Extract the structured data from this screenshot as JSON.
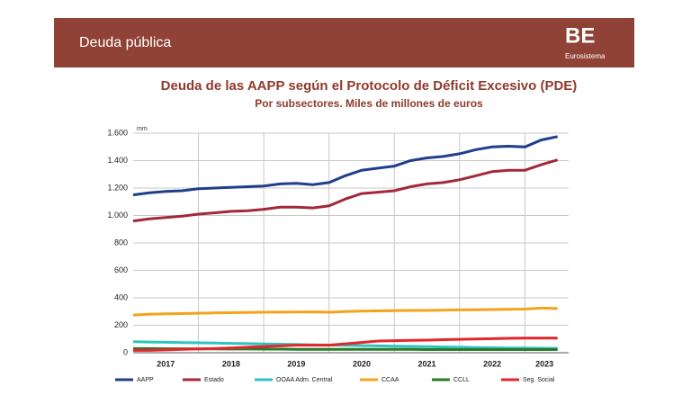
{
  "header": {
    "title": "Deuda pública",
    "logo": "BE",
    "logo_sub": "Eurosistema"
  },
  "chart_data": {
    "type": "line",
    "title": "Deuda de las AAPP según el Protocolo de Déficit Excesivo (PDE)",
    "subtitle": "Por subsectores. Miles de millones de euros",
    "y_label": "mm",
    "x": [
      2017,
      2017.25,
      2017.5,
      2017.75,
      2018,
      2018.25,
      2018.5,
      2018.75,
      2019,
      2019.25,
      2019.5,
      2019.75,
      2020,
      2020.25,
      2020.5,
      2020.75,
      2021,
      2021.25,
      2021.5,
      2021.75,
      2022,
      2022.25,
      2022.5,
      2022.75,
      2023,
      2023.25,
      2023.5
    ],
    "xlim": [
      2017,
      2023.67
    ],
    "xticks": [
      {
        "value": 2017.5,
        "label": "2017"
      },
      {
        "value": 2018.5,
        "label": "2018"
      },
      {
        "value": 2019.5,
        "label": "2019"
      },
      {
        "value": 2020.5,
        "label": "2020"
      },
      {
        "value": 2021.5,
        "label": "2021"
      },
      {
        "value": 2022.5,
        "label": "2022"
      },
      {
        "value": 2023.3,
        "label": "2023"
      }
    ],
    "xgrid": [
      2018,
      2019,
      2020,
      2021,
      2022,
      2023
    ],
    "ylim": [
      0,
      1600
    ],
    "yticks": [
      0,
      200,
      400,
      600,
      800,
      {
        "value": 1000,
        "label": "1.000"
      },
      {
        "value": 1200,
        "label": "1.200"
      },
      {
        "value": 1400,
        "label": "1.400"
      },
      {
        "value": 1600,
        "label": "1.600"
      }
    ],
    "grid": true,
    "legend": "bottom",
    "series": [
      {
        "name": "AAPP",
        "color": "#1f3f8c",
        "values": [
          1150,
          1165,
          1175,
          1180,
          1195,
          1200,
          1205,
          1210,
          1215,
          1230,
          1235,
          1225,
          1240,
          1290,
          1330,
          1345,
          1360,
          1400,
          1420,
          1430,
          1450,
          1480,
          1500,
          1505,
          1500,
          1550,
          1575
        ]
      },
      {
        "name": "Estado",
        "color": "#a3283d",
        "values": [
          960,
          975,
          985,
          995,
          1010,
          1020,
          1030,
          1035,
          1045,
          1060,
          1060,
          1055,
          1070,
          1120,
          1160,
          1170,
          1180,
          1210,
          1230,
          1240,
          1260,
          1290,
          1320,
          1330,
          1330,
          1370,
          1405
        ]
      },
      {
        "name": "OOAA Adm. Central",
        "color": "#2ec4c0",
        "values": [
          80,
          78,
          76,
          74,
          72,
          70,
          68,
          66,
          64,
          62,
          60,
          58,
          56,
          54,
          52,
          50,
          48,
          46,
          44,
          42,
          40,
          38,
          36,
          35,
          34,
          33,
          32
        ]
      },
      {
        "name": "CCAA",
        "color": "#f2a41c",
        "values": [
          275,
          280,
          283,
          285,
          288,
          290,
          292,
          293,
          295,
          296,
          297,
          298,
          295,
          300,
          303,
          305,
          307,
          308,
          308,
          310,
          312,
          313,
          315,
          316,
          318,
          325,
          322
        ]
      },
      {
        "name": "CCLL",
        "color": "#2a7a2a",
        "values": [
          30,
          30,
          29,
          29,
          28,
          28,
          27,
          27,
          26,
          26,
          25,
          25,
          25,
          25,
          25,
          24,
          24,
          24,
          23,
          23,
          23,
          23,
          23,
          23,
          23,
          23,
          23
        ]
      },
      {
        "name": "Seg. Social",
        "color": "#e4262c",
        "values": [
          17,
          17,
          20,
          25,
          28,
          30,
          35,
          40,
          45,
          50,
          55,
          55,
          55,
          65,
          75,
          85,
          88,
          90,
          92,
          95,
          98,
          100,
          102,
          105,
          107,
          107,
          107
        ]
      }
    ]
  }
}
